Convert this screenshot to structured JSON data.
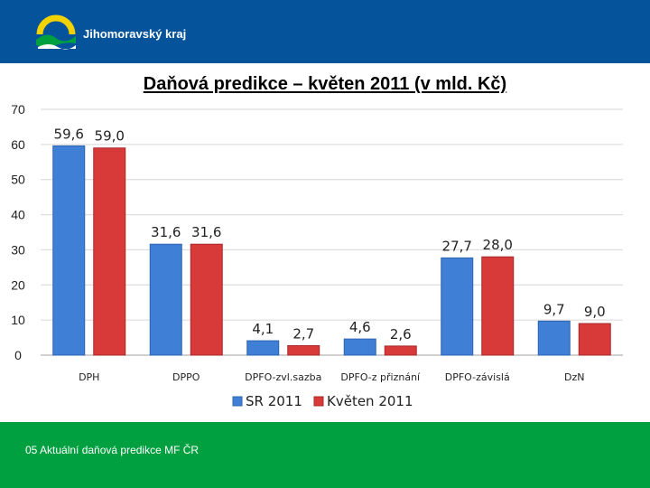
{
  "header": {
    "brand": "Jihomoravský kraj"
  },
  "footer": {
    "text": "05 Aktuální daňová predikce MF ČR"
  },
  "colors": {
    "header_bg": "#04539b",
    "footer_bg": "#00a040",
    "series_sr": "#3f7fd6",
    "series_kveten": "#d83a3a"
  },
  "chart_data": {
    "type": "bar",
    "title": "Daňová predikce – květen 2011 (v mld. Kč)",
    "categories": [
      "DPH",
      "DPPO",
      "DPFO-zvl.sazba",
      "DPFO-z přiznání",
      "DPFO-závislá",
      "DzN"
    ],
    "series": [
      {
        "name": "SR 2011",
        "values": [
          59.6,
          31.6,
          4.1,
          4.6,
          27.7,
          9.7
        ],
        "labels": [
          "59,6",
          "31,6",
          "4,1",
          "4,6",
          "27,7",
          "9,7"
        ]
      },
      {
        "name": "Květen 2011",
        "values": [
          59.0,
          31.6,
          2.7,
          2.6,
          28.0,
          9.0
        ],
        "labels": [
          "59,0",
          "31,6",
          "2,7",
          "2,6",
          "28,0",
          "9,0"
        ]
      }
    ],
    "ylim": [
      0,
      70
    ],
    "yticks": [
      "0",
      "10",
      "20",
      "30",
      "40",
      "50",
      "60",
      "70"
    ],
    "grid": true,
    "legend": "bottom"
  }
}
